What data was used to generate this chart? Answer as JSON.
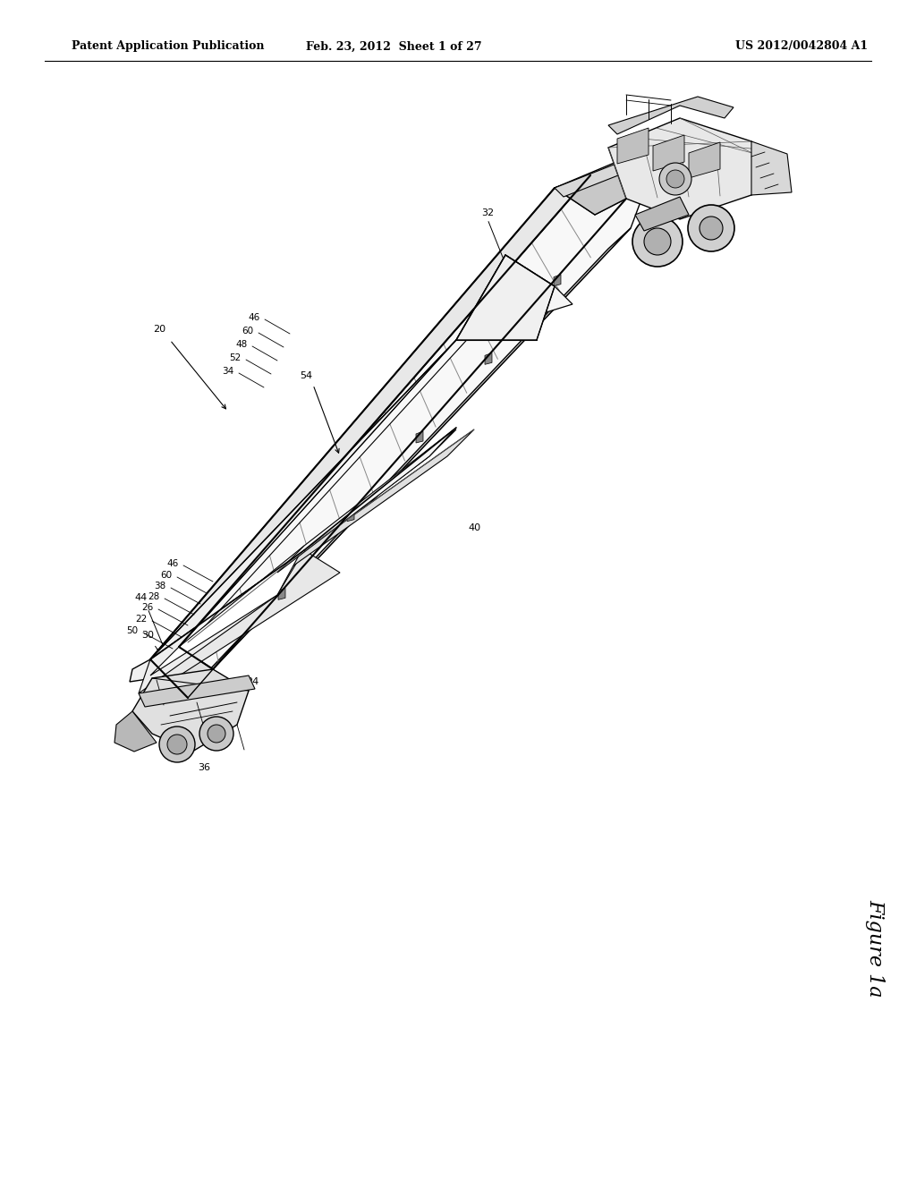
{
  "background_color": "#ffffff",
  "header_left": "Patent Application Publication",
  "header_center": "Feb. 23, 2012  Sheet 1 of 27",
  "header_right": "US 2012/0042804 A1",
  "figure_label": "Figure 1a",
  "header_fontsize": 9,
  "label_fontsize": 8,
  "figure_label_fontsize": 16,
  "line_color": "#000000",
  "fill_white": "#ffffff",
  "fill_light": "#f0f0f0",
  "fill_mid": "#d8d8d8",
  "fill_dark": "#aaaaaa",
  "fill_very_dark": "#666666"
}
